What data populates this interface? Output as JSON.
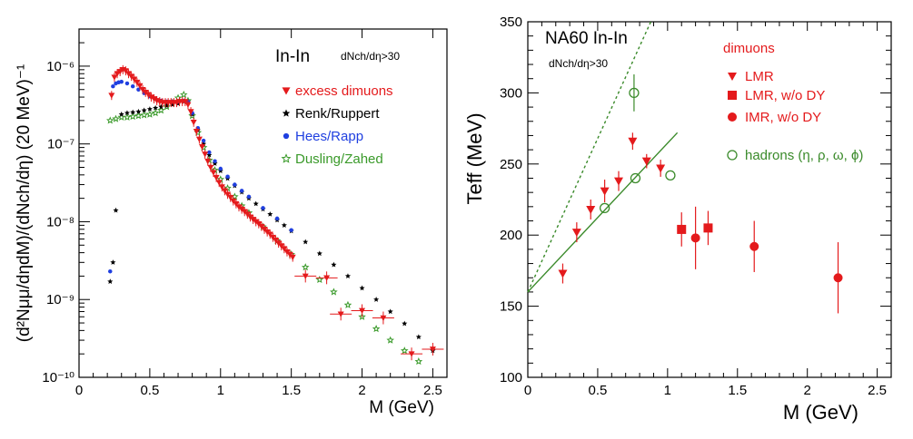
{
  "chart_data": [
    {
      "type": "scatter",
      "title": "In-In",
      "condition": "dNch/dη>30",
      "xlabel": "M (GeV)",
      "ylabel": "(d²Nμμ/dηdM)/(dNch/dη) (20 MeV)⁻¹",
      "y_scale": "log",
      "xlim": [
        0,
        2.6
      ],
      "ylim": [
        1e-10,
        3e-06
      ],
      "x_ticks": [
        "0",
        "0.5",
        "1",
        "1.5",
        "2",
        "2.5"
      ],
      "y_ticks": [
        "10⁻¹⁰",
        "10⁻⁹",
        "10⁻⁸",
        "10⁻⁷",
        "10⁻⁶"
      ],
      "legend": [
        {
          "label": "excess dimuons",
          "color": "#e41a1c",
          "marker": "triangle-down"
        },
        {
          "label": "Renk/Ruppert",
          "color": "#000000",
          "marker": "star"
        },
        {
          "label": "Hees/Rapp",
          "color": "#1f3fe0",
          "marker": "dot"
        },
        {
          "label": "Dusling/Zahed",
          "color": "#3a9a2a",
          "marker": "star-open"
        }
      ],
      "series": [
        {
          "name": "excess dimuons",
          "color": "#e41a1c",
          "x": [
            0.23,
            0.25,
            0.27,
            0.29,
            0.31,
            0.33,
            0.35,
            0.37,
            0.39,
            0.41,
            0.43,
            0.45,
            0.47,
            0.49,
            0.51,
            0.53,
            0.55,
            0.57,
            0.59,
            0.61,
            0.63,
            0.65,
            0.67,
            0.69,
            0.71,
            0.73,
            0.75,
            0.77,
            0.79,
            0.81,
            0.83,
            0.85,
            0.87,
            0.89,
            0.91,
            0.93,
            0.95,
            0.97,
            0.99,
            1.01,
            1.03,
            1.05,
            1.07,
            1.09,
            1.11,
            1.13,
            1.15,
            1.17,
            1.19,
            1.21,
            1.23,
            1.25,
            1.27,
            1.29,
            1.31,
            1.33,
            1.35,
            1.37,
            1.39,
            1.41,
            1.43,
            1.45,
            1.47,
            1.49,
            1.51,
            1.6,
            1.75,
            1.85,
            2.0,
            2.15,
            2.35,
            2.5
          ],
          "y": [
            4.2e-07,
            7.2e-07,
            8e-07,
            8.5e-07,
            9e-07,
            8.7e-07,
            8e-07,
            7.4e-07,
            6.8e-07,
            6.2e-07,
            5.6e-07,
            5e-07,
            4.6e-07,
            4.3e-07,
            4e-07,
            3.8e-07,
            3.6e-07,
            3.5e-07,
            3.4e-07,
            3.4e-07,
            3.4e-07,
            3.4e-07,
            3.4e-07,
            3.4e-07,
            3.5e-07,
            3.5e-07,
            3.5e-07,
            3.2e-07,
            2.6e-07,
            1.9e-07,
            1.45e-07,
            1.15e-07,
            9.2e-08,
            7.4e-08,
            6e-08,
            5e-08,
            4.3e-08,
            3.7e-08,
            3.2e-08,
            2.8e-08,
            2.5e-08,
            2.25e-08,
            2.05e-08,
            1.85e-08,
            1.7e-08,
            1.55e-08,
            1.45e-08,
            1.35e-08,
            1.25e-08,
            1.15e-08,
            1.07e-08,
            1e-08,
            9.4e-09,
            8.7e-09,
            8e-09,
            7.4e-09,
            6.9e-09,
            6.3e-09,
            5.8e-09,
            5.3e-09,
            4.9e-09,
            4.5e-09,
            4.1e-09,
            3.8e-09,
            3.5e-09,
            2e-09,
            1.9e-09,
            6.5e-10,
            7.2e-10,
            5.8e-10,
            2e-10,
            2.3e-10
          ]
        },
        {
          "name": "Renk/Ruppert",
          "color": "#000000",
          "x": [
            0.22,
            0.24,
            0.26,
            0.3,
            0.34,
            0.38,
            0.42,
            0.46,
            0.5,
            0.54,
            0.58,
            0.62,
            0.66,
            0.7,
            0.74,
            0.77,
            0.8,
            0.84,
            0.88,
            0.92,
            0.96,
            1.0,
            1.05,
            1.1,
            1.15,
            1.2,
            1.25,
            1.3,
            1.35,
            1.4,
            1.45,
            1.5,
            1.6,
            1.7,
            1.8,
            1.9,
            2.0,
            2.1,
            2.2,
            2.3,
            2.4,
            2.5
          ],
          "y": [
            1.7e-09,
            3e-09,
            1.4e-08,
            2.4e-07,
            2.5e-07,
            2.55e-07,
            2.6e-07,
            2.7e-07,
            2.8e-07,
            2.9e-07,
            3e-07,
            3.1e-07,
            3.2e-07,
            3.3e-07,
            3.5e-07,
            3.5e-07,
            2.4e-07,
            1.5e-07,
            1e-07,
            7.2e-08,
            5.6e-08,
            4.5e-08,
            3.6e-08,
            2.9e-08,
            2.4e-08,
            2e-08,
            1.7e-08,
            1.45e-08,
            1.25e-08,
            1.05e-08,
            9e-09,
            7.6e-09,
            5.5e-09,
            3.9e-09,
            2.8e-09,
            2e-09,
            1.4e-09,
            1e-09,
            7e-10,
            4.9e-10,
            3.3e-10,
            2.2e-10
          ]
        },
        {
          "name": "Hees/Rapp",
          "color": "#1f3fe0",
          "x": [
            0.22,
            0.24,
            0.26,
            0.28,
            0.3,
            0.34,
            0.38,
            0.42,
            0.46,
            0.5,
            0.54,
            0.58,
            0.62,
            0.66,
            0.7,
            0.74,
            0.77,
            0.8,
            0.84,
            0.88,
            0.92,
            0.96,
            1.0,
            1.05,
            1.1,
            1.15,
            1.2,
            1.3,
            1.4,
            1.5
          ],
          "y": [
            2.3e-09,
            5.5e-07,
            6e-07,
            6.2e-07,
            6.3e-07,
            6e-07,
            5.5e-07,
            5e-07,
            4.5e-07,
            4.1e-07,
            3.8e-07,
            3.6e-07,
            3.5e-07,
            3.5e-07,
            3.5e-07,
            3.6e-07,
            3.5e-07,
            2.5e-07,
            1.6e-07,
            1.1e-07,
            7.8e-08,
            6e-08,
            4.8e-08,
            3.8e-08,
            3e-08,
            2.5e-08,
            2.1e-08,
            1.5e-08,
            1.1e-08,
            7.8e-09
          ]
        },
        {
          "name": "Dusling/Zahed",
          "color": "#3a9a2a",
          "x": [
            0.22,
            0.26,
            0.3,
            0.34,
            0.38,
            0.42,
            0.46,
            0.5,
            0.54,
            0.58,
            0.62,
            0.66,
            0.7,
            0.74,
            0.77,
            0.8,
            0.84,
            0.88,
            0.92,
            0.96,
            1.0,
            1.05,
            1.1,
            1.15,
            1.2,
            1.3,
            1.4,
            1.5,
            1.6,
            1.7,
            1.8,
            1.9,
            2.0,
            2.1,
            2.2,
            2.3,
            2.4
          ],
          "y": [
            2e-07,
            2.1e-07,
            2.2e-07,
            2.2e-07,
            2.25e-07,
            2.3e-07,
            2.35e-07,
            2.4e-07,
            2.5e-07,
            2.7e-07,
            3e-07,
            3.4e-07,
            3.9e-07,
            4.3e-07,
            3.6e-07,
            2.3e-07,
            1.4e-07,
            9e-08,
            6.2e-08,
            4.6e-08,
            3.5e-08,
            2.7e-08,
            2.1e-08,
            1.6e-08,
            1.3e-08,
            8.6e-09,
            5.7e-09,
            3.8e-09,
            2.6e-09,
            1.8e-09,
            1.25e-09,
            8.5e-10,
            6e-10,
            4.2e-10,
            3e-10,
            2.2e-10,
            1.6e-10
          ]
        }
      ]
    },
    {
      "type": "scatter",
      "title": "NA60 In-In",
      "condition": "dNch/dη>30",
      "xlabel": "M (GeV)",
      "ylabel": "Teff (MeV)",
      "xlim": [
        0,
        2.6
      ],
      "ylim": [
        100,
        350
      ],
      "x_ticks": [
        "0",
        "0.5",
        "1",
        "1.5",
        "2",
        "2.5"
      ],
      "y_ticks": [
        "100",
        "150",
        "200",
        "250",
        "300",
        "350"
      ],
      "legend_header": "dimuons",
      "legend": [
        {
          "label": "LMR",
          "color": "#e41a1c",
          "marker": "triangle-down"
        },
        {
          "label": "LMR, w/o DY",
          "color": "#e41a1c",
          "marker": "square"
        },
        {
          "label": "IMR,  w/o DY",
          "color": "#e41a1c",
          "marker": "circle"
        },
        {
          "label": "hadrons (η, ρ, ω, ϕ)",
          "color": "#3a8a2a",
          "marker": "circle-open"
        }
      ],
      "series": [
        {
          "name": "LMR",
          "color": "#e41a1c",
          "x": [
            0.25,
            0.35,
            0.45,
            0.55,
            0.65,
            0.75,
            0.85,
            0.95
          ],
          "y": [
            173,
            202,
            218,
            231,
            238,
            266,
            252,
            247
          ],
          "yerr": [
            7,
            7,
            7,
            8,
            7,
            6,
            5,
            6
          ]
        },
        {
          "name": "LMR, w/o DY",
          "color": "#e41a1c",
          "x": [
            1.1,
            1.29
          ],
          "y": [
            204,
            205
          ],
          "yerr": [
            12,
            12
          ]
        },
        {
          "name": "IMR,  w/o DY",
          "color": "#e41a1c",
          "x": [
            1.2,
            1.62,
            2.22
          ],
          "y": [
            198,
            192,
            170
          ],
          "yerr": [
            22,
            18,
            25
          ]
        },
        {
          "name": "hadrons",
          "color": "#3a8a2a",
          "x": [
            0.55,
            0.76,
            0.77,
            1.02
          ],
          "y": [
            219,
            300,
            240,
            242
          ],
          "yerr": [
            0,
            13,
            0,
            0
          ]
        }
      ],
      "lines": [
        {
          "style": "solid",
          "color": "#3a8a2a",
          "x": [
            0,
            1.07
          ],
          "y": [
            160,
            272
          ]
        },
        {
          "style": "dashed",
          "color": "#3a8a2a",
          "x": [
            0,
            0.88
          ],
          "y": [
            160,
            350
          ]
        }
      ]
    }
  ]
}
